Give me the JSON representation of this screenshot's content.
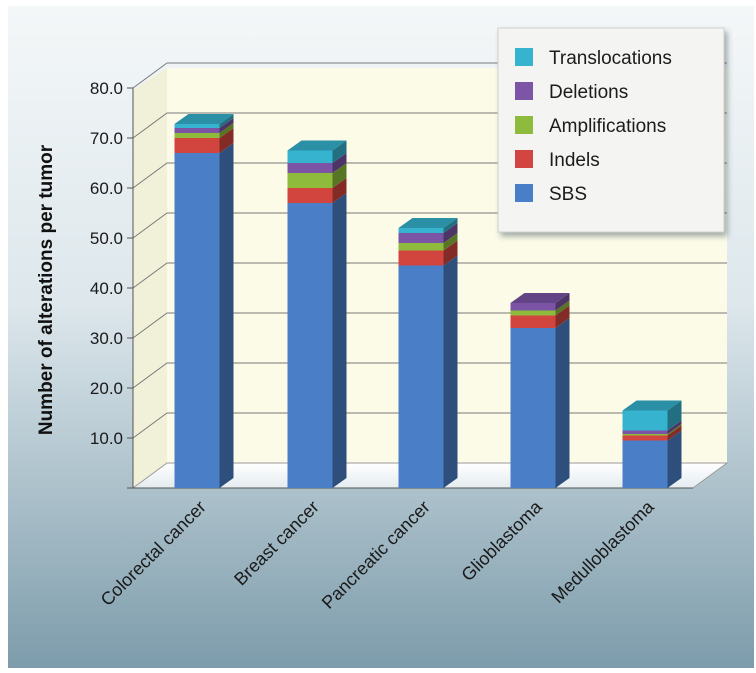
{
  "chart_data": {
    "type": "bar",
    "stacked": true,
    "three_d": true,
    "ylabel": "Number of alterations per tumor",
    "xlabel": "",
    "ylim": [
      0,
      80
    ],
    "yticks": [
      "10.0",
      "20.0",
      "30.0",
      "40.0",
      "50.0",
      "60.0",
      "70.0",
      "80.0"
    ],
    "grid": "horizontal",
    "legend_position": "top-right",
    "categories": [
      "Colorectal cancer",
      "Breast cancer",
      "Pancreatic cancer",
      "Glioblastoma",
      "Medulloblastoma"
    ],
    "series": [
      {
        "name": "SBS",
        "color": "#4a7fc8",
        "values": [
          67.0,
          57.0,
          44.5,
          32.0,
          9.5
        ]
      },
      {
        "name": "Indels",
        "color": "#d2453f",
        "values": [
          3.0,
          3.0,
          3.0,
          2.5,
          1.0
        ]
      },
      {
        "name": "Amplifications",
        "color": "#8ebb3c",
        "values": [
          1.0,
          3.0,
          1.5,
          1.0,
          0.3
        ]
      },
      {
        "name": "Deletions",
        "color": "#7b54a6",
        "values": [
          1.0,
          2.0,
          2.0,
          1.5,
          0.7
        ]
      },
      {
        "name": "Translocations",
        "color": "#36b3cf",
        "values": [
          0.8,
          2.5,
          1.0,
          0.0,
          4.0
        ]
      }
    ],
    "legend_order": [
      "Translocations",
      "Deletions",
      "Amplifications",
      "Indels",
      "SBS"
    ]
  }
}
